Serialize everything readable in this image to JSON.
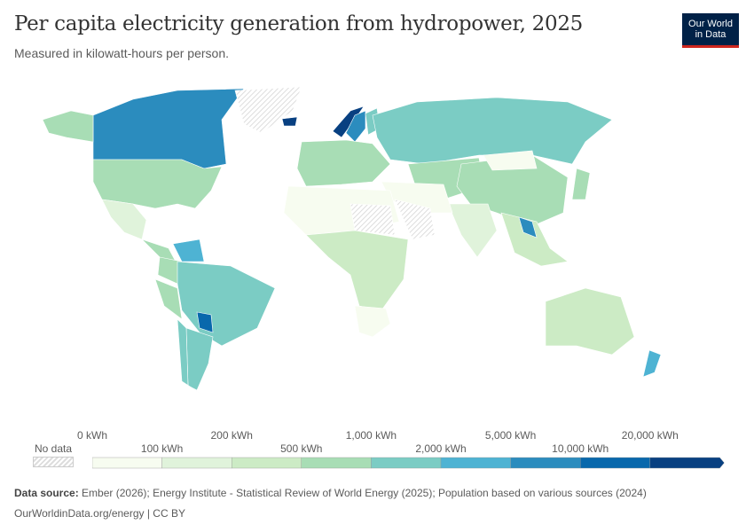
{
  "header": {
    "title": "Per capita electricity generation from hydropower, 2025",
    "subtitle": "Measured in kilowatt-hours per person.",
    "logo_line1": "Our World",
    "logo_line2": "in Data"
  },
  "legend": {
    "no_data_label": "No data",
    "colors": [
      "#f7fcf0",
      "#e0f3db",
      "#ccebc5",
      "#a8ddb5",
      "#7bccc4",
      "#4eb3d3",
      "#2b8cbe",
      "#0868ac",
      "#084081"
    ],
    "no_data_color": "hatched",
    "ticks": [
      "0 kWh",
      "100 kWh",
      "200 kWh",
      "500 kWh",
      "1,000 kWh",
      "2,000 kWh",
      "5,000 kWh",
      "10,000 kWh",
      "20,000 kWh"
    ]
  },
  "regions": [
    {
      "name": "Canada",
      "level": 6
    },
    {
      "name": "United States",
      "level": 3
    },
    {
      "name": "Alaska",
      "level": 3
    },
    {
      "name": "Greenland",
      "level": -1
    },
    {
      "name": "Mexico",
      "level": 1
    },
    {
      "name": "Central America",
      "level": 3
    },
    {
      "name": "Venezuela",
      "level": 5
    },
    {
      "name": "Colombia",
      "level": 3
    },
    {
      "name": "Peru",
      "level": 3
    },
    {
      "name": "Brazil",
      "level": 4
    },
    {
      "name": "Paraguay",
      "level": 7
    },
    {
      "name": "Argentina",
      "level": 4
    },
    {
      "name": "Chile",
      "level": 4
    },
    {
      "name": "Iceland",
      "level": 8
    },
    {
      "name": "Norway",
      "level": 8
    },
    {
      "name": "Sweden",
      "level": 6
    },
    {
      "name": "Finland",
      "level": 4
    },
    {
      "name": "Western Europe",
      "level": 3
    },
    {
      "name": "Russia",
      "level": 4
    },
    {
      "name": "Central Asia",
      "level": 3
    },
    {
      "name": "China",
      "level": 3
    },
    {
      "name": "Mongolia",
      "level": 0
    },
    {
      "name": "India",
      "level": 1
    },
    {
      "name": "Southeast Asia",
      "level": 2
    },
    {
      "name": "Laos",
      "level": 6
    },
    {
      "name": "Japan",
      "level": 3
    },
    {
      "name": "Middle East",
      "level": 0
    },
    {
      "name": "Arabia",
      "level": -1
    },
    {
      "name": "North Africa",
      "level": 0
    },
    {
      "name": "Sahel",
      "level": -1
    },
    {
      "name": "Central Africa",
      "level": 2
    },
    {
      "name": "Southern Africa",
      "level": 0
    },
    {
      "name": "Australia",
      "level": 2
    },
    {
      "name": "New Zealand",
      "level": 5
    }
  ],
  "footer": {
    "source_label": "Data source:",
    "source_text": "Ember (2026); Energy Institute - Statistical Review of World Energy (2025); Population based on various sources (2024)",
    "url": "OurWorldinData.org/energy | CC BY"
  }
}
